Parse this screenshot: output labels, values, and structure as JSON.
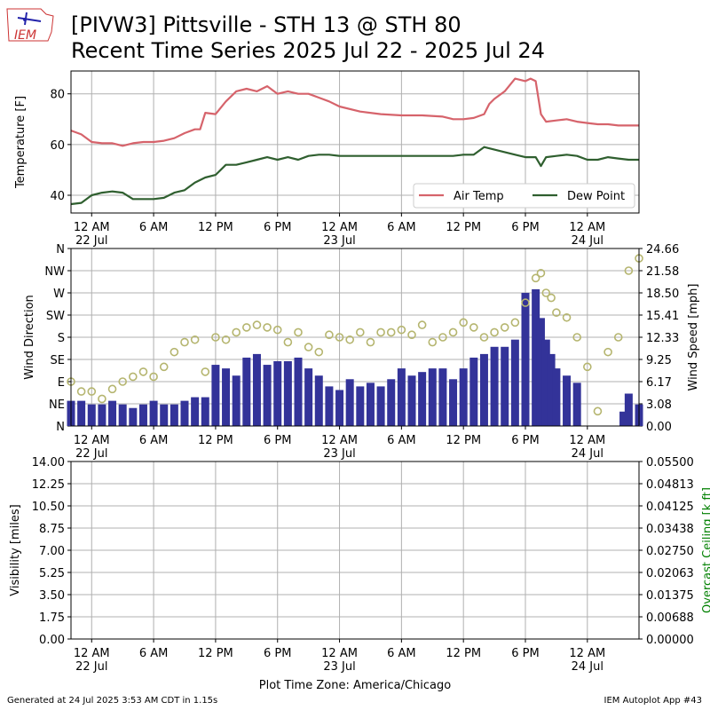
{
  "header": {
    "line1": "[PIVW3] Pittsville - STH 13 @ STH 80",
    "line2": "Recent Time Series 2025 Jul 22 - 2025 Jul 24",
    "logo_text": "IEM"
  },
  "footer": {
    "left": "Generated at 24 Jul 2025 3:53 AM CDT in 1.15s",
    "right": "IEM Autoplot App #43"
  },
  "colors": {
    "air_temp": "#d6636b",
    "dew_point": "#2f5f2f",
    "wind_speed": "#333399",
    "wind_dir": "#b5b56f",
    "ceiling_label": "#008000",
    "grid": "#b0b0b0"
  },
  "chart_data": [
    {
      "type": "line",
      "ylabel": "Temperature [F]",
      "ylim": [
        33,
        89
      ],
      "yticks": [
        40,
        60,
        80
      ],
      "xlim_hours": [
        -2,
        53
      ],
      "x_ticks": [
        {
          "label": "12 AM",
          "sub": "22 Jul"
        },
        {
          "label": "6 AM",
          "sub": ""
        },
        {
          "label": "12 PM",
          "sub": ""
        },
        {
          "label": "6 PM",
          "sub": ""
        },
        {
          "label": "12 AM",
          "sub": "23 Jul"
        },
        {
          "label": "6 AM",
          "sub": ""
        },
        {
          "label": "12 PM",
          "sub": ""
        },
        {
          "label": "6 PM",
          "sub": ""
        },
        {
          "label": "12 AM",
          "sub": "24 Jul"
        }
      ],
      "legend_position": "lower-right",
      "series": [
        {
          "name": "Air Temp",
          "x": [
            -2,
            -1,
            0,
            1,
            2,
            3,
            4,
            5,
            6,
            7,
            8,
            9,
            10,
            10.5,
            11,
            12,
            13,
            14,
            15,
            16,
            17,
            18,
            19,
            20,
            21,
            22,
            23,
            24,
            26,
            28,
            30,
            32,
            34,
            35,
            36,
            37,
            38,
            38.5,
            39,
            40,
            41,
            42,
            42.5,
            43,
            43.5,
            44,
            45,
            46,
            47,
            48,
            49,
            50,
            51,
            52,
            53
          ],
          "values": [
            65.5,
            64,
            61,
            60.5,
            60.5,
            59.5,
            60.5,
            61,
            61,
            61.5,
            62.5,
            64.5,
            66,
            66,
            72.5,
            72,
            77,
            81,
            82,
            81,
            83,
            80,
            81,
            80,
            80,
            78.5,
            77,
            75,
            73,
            72,
            71.5,
            71.5,
            71,
            70,
            70,
            70.5,
            72,
            76,
            78,
            81,
            86,
            85,
            86,
            85,
            72,
            69,
            69.5,
            70,
            69,
            68.5,
            68,
            68,
            67.5,
            67.5,
            67.5
          ]
        },
        {
          "name": "Dew Point",
          "x": [
            -2,
            -1,
            0,
            1,
            2,
            3,
            4,
            5,
            6,
            7,
            8,
            9,
            10,
            11,
            12,
            13,
            14,
            15,
            16,
            17,
            18,
            19,
            20,
            21,
            22,
            23,
            24,
            26,
            28,
            30,
            32,
            34,
            35,
            36,
            37,
            38,
            39,
            40,
            41,
            42,
            43,
            43.5,
            44,
            45,
            46,
            47,
            48,
            49,
            50,
            51,
            52,
            53
          ],
          "values": [
            36.5,
            37,
            40,
            41,
            41.5,
            41,
            38.5,
            38.5,
            38.5,
            39,
            41,
            42,
            45,
            47,
            48,
            52,
            52,
            53,
            54,
            55,
            54,
            55,
            54,
            55.5,
            56,
            56,
            55.5,
            55.5,
            55.5,
            55.5,
            55.5,
            55.5,
            55.5,
            56,
            56,
            59,
            58,
            57,
            56,
            55,
            55,
            51.5,
            55,
            55.5,
            56,
            55.5,
            54,
            54,
            55,
            54.5,
            54,
            54
          ]
        }
      ]
    },
    {
      "type": "bar",
      "ylabel": "Wind Direction",
      "y2label": "Wind Speed [mph]",
      "dir_labels": [
        "N",
        "NE",
        "E",
        "SE",
        "S",
        "SW",
        "W",
        "NW",
        "N"
      ],
      "ylim_deg": [
        0,
        360
      ],
      "speed_ticks": [
        "0.00",
        "3.08",
        "6.17",
        "9.25",
        "12.33",
        "15.41",
        "18.50",
        "21.58",
        "24.66"
      ],
      "ylim_speed": [
        0,
        24.66
      ],
      "series": [
        {
          "name": "Wind Speed",
          "x": [
            -2,
            -1,
            0,
            1,
            2,
            3,
            4,
            5,
            6,
            7,
            8,
            9,
            10,
            11,
            12,
            13,
            14,
            15,
            16,
            17,
            18,
            19,
            20,
            21,
            22,
            23,
            24,
            25,
            26,
            27,
            28,
            29,
            30,
            31,
            32,
            33,
            34,
            35,
            36,
            37,
            38,
            39,
            40,
            41,
            42,
            43,
            43.5,
            44,
            44.5,
            45,
            46,
            47,
            48,
            49,
            50,
            51,
            51.5,
            52,
            53
          ],
          "values": [
            3.5,
            3.5,
            3,
            3,
            3.5,
            3,
            2.5,
            3,
            3.5,
            3,
            3,
            3.5,
            4,
            4,
            8.5,
            8,
            7,
            9.5,
            10,
            8.5,
            9,
            9,
            9.5,
            8,
            7,
            5.5,
            5,
            6.5,
            5.5,
            6,
            5.5,
            6.5,
            8,
            7,
            7.5,
            8,
            8,
            6.5,
            8,
            9.5,
            10,
            11,
            11,
            12,
            18.5,
            19,
            15,
            12,
            10,
            8,
            7,
            6,
            0,
            0,
            0,
            0,
            2,
            4.5,
            3
          ]
        },
        {
          "name": "Wind Direction",
          "x": [
            -2,
            -1,
            0,
            1,
            2,
            3,
            4,
            5,
            6,
            7,
            8,
            9,
            10,
            11,
            12,
            13,
            14,
            15,
            16,
            17,
            18,
            19,
            20,
            21,
            22,
            23,
            24,
            25,
            26,
            27,
            28,
            29,
            30,
            31,
            32,
            33,
            34,
            35,
            36,
            37,
            38,
            39,
            40,
            41,
            42,
            43,
            43.5,
            44,
            44.5,
            45,
            46,
            47,
            48,
            49,
            50,
            51,
            52,
            53
          ],
          "values": [
            90,
            70,
            70,
            55,
            75,
            90,
            100,
            110,
            100,
            120,
            150,
            170,
            175,
            110,
            180,
            175,
            190,
            200,
            205,
            200,
            195,
            170,
            190,
            160,
            150,
            185,
            180,
            175,
            190,
            170,
            190,
            190,
            195,
            185,
            205,
            170,
            180,
            190,
            210,
            200,
            180,
            190,
            200,
            210,
            250,
            300,
            310,
            270,
            260,
            230,
            220,
            180,
            120,
            30,
            150,
            180,
            315,
            340
          ]
        }
      ]
    },
    {
      "type": "line",
      "ylabel": "Visibility [miles]",
      "y2label": "Overcast Ceiling [k ft]",
      "yticks": [
        "0.00",
        "1.75",
        "3.50",
        "5.25",
        "7.00",
        "8.75",
        "10.50",
        "12.25",
        "14.00"
      ],
      "y2ticks": [
        "0.00000",
        "0.00688",
        "0.01375",
        "0.02063",
        "0.02750",
        "0.03438",
        "0.04125",
        "0.04813",
        "0.05500"
      ],
      "ylim": [
        0,
        14
      ],
      "xlabel": "Plot Time Zone: America/Chicago"
    }
  ]
}
